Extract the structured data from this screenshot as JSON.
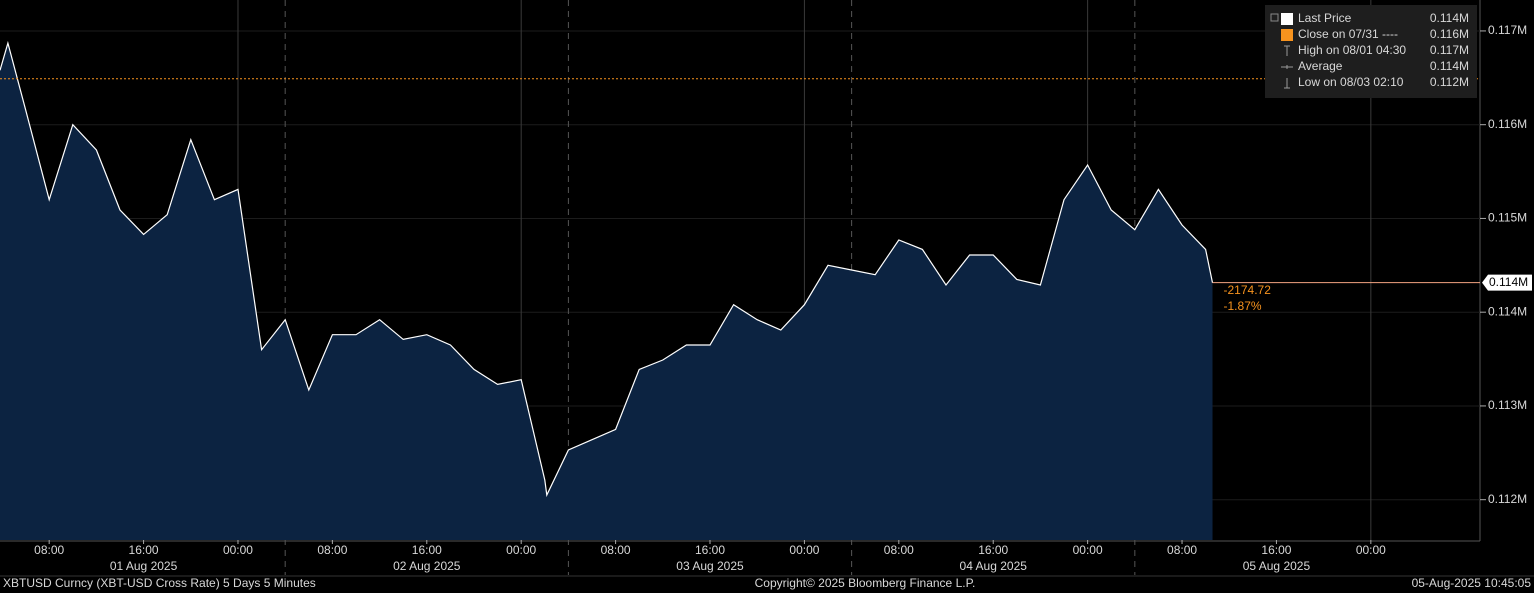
{
  "chart_data": {
    "type": "area",
    "series": [
      {
        "name": "Last Price",
        "color": "#ffffff",
        "fill": "#0c2341",
        "x": [
          "2025-08-01T03:50",
          "2025-08-01T04:30",
          "2025-08-01T06:00",
          "2025-08-01T08:00",
          "2025-08-01T10:00",
          "2025-08-01T12:00",
          "2025-08-01T14:00",
          "2025-08-01T16:00",
          "2025-08-01T18:00",
          "2025-08-01T20:00",
          "2025-08-01T22:00",
          "2025-08-02T00:00",
          "2025-08-02T02:00",
          "2025-08-02T04:00",
          "2025-08-02T06:00",
          "2025-08-02T08:00",
          "2025-08-02T10:00",
          "2025-08-02T12:00",
          "2025-08-02T14:00",
          "2025-08-02T16:00",
          "2025-08-02T18:00",
          "2025-08-02T20:00",
          "2025-08-02T22:00",
          "2025-08-03T00:00",
          "2025-08-03T02:00",
          "2025-08-03T02:10",
          "2025-08-03T04:00",
          "2025-08-03T06:00",
          "2025-08-03T08:00",
          "2025-08-03T10:00",
          "2025-08-03T12:00",
          "2025-08-03T14:00",
          "2025-08-03T16:00",
          "2025-08-03T18:00",
          "2025-08-03T20:00",
          "2025-08-03T22:00",
          "2025-08-04T00:00",
          "2025-08-04T02:00",
          "2025-08-04T04:00",
          "2025-08-04T06:00",
          "2025-08-04T08:00",
          "2025-08-04T10:00",
          "2025-08-04T12:00",
          "2025-08-04T14:00",
          "2025-08-04T16:00",
          "2025-08-04T18:00",
          "2025-08-04T20:00",
          "2025-08-04T22:00",
          "2025-08-05T00:00",
          "2025-08-05T02:00",
          "2025-08-05T04:00",
          "2025-08-05T06:00",
          "2025-08-05T08:00",
          "2025-08-05T10:00",
          "2025-08-05T10:35"
        ],
        "values": [
          116580,
          116870,
          116160,
          115200,
          116000,
          115730,
          115090,
          114830,
          115040,
          115840,
          115200,
          115310,
          113600,
          113920,
          113170,
          113760,
          113760,
          113920,
          113710,
          113760,
          113650,
          113390,
          113230,
          113280,
          112210,
          112050,
          112530,
          112640,
          112750,
          113390,
          113490,
          113650,
          113650,
          114080,
          113920,
          113810,
          114080,
          114500,
          114450,
          114400,
          114770,
          114670,
          114290,
          114610,
          114610,
          114350,
          114290,
          115200,
          115570,
          115090,
          114880,
          115310,
          114930,
          114670,
          114315
        ]
      }
    ],
    "xlim": [
      "2025-08-01T03:50",
      "2025-08-06T09:15"
    ],
    "xticks": [
      {
        "value": "2025-08-01T08:00",
        "label": "08:00"
      },
      {
        "value": "2025-08-01T16:00",
        "label": "16:00"
      },
      {
        "value": "2025-08-02T00:00",
        "label": "00:00"
      },
      {
        "value": "2025-08-02T08:00",
        "label": "08:00"
      },
      {
        "value": "2025-08-02T16:00",
        "label": "16:00"
      },
      {
        "value": "2025-08-03T00:00",
        "label": "00:00"
      },
      {
        "value": "2025-08-03T08:00",
        "label": "08:00"
      },
      {
        "value": "2025-08-03T16:00",
        "label": "16:00"
      },
      {
        "value": "2025-08-04T00:00",
        "label": "00:00"
      },
      {
        "value": "2025-08-04T08:00",
        "label": "08:00"
      },
      {
        "value": "2025-08-04T16:00",
        "label": "16:00"
      },
      {
        "value": "2025-08-05T00:00",
        "label": "00:00"
      },
      {
        "value": "2025-08-05T08:00",
        "label": "08:00"
      },
      {
        "value": "2025-08-05T16:00",
        "label": "16:00"
      },
      {
        "value": "2025-08-06T00:00",
        "label": "00:00"
      }
    ],
    "date_labels": [
      {
        "value": "2025-08-01T16:00",
        "label": "01 Aug 2025"
      },
      {
        "value": "2025-08-02T16:00",
        "label": "02 Aug 2025"
      },
      {
        "value": "2025-08-03T16:00",
        "label": "03 Aug 2025"
      },
      {
        "value": "2025-08-04T16:00",
        "label": "04 Aug 2025"
      },
      {
        "value": "2025-08-05T16:00",
        "label": "05 Aug 2025"
      }
    ],
    "day_separators": [
      "2025-08-02T04:00",
      "2025-08-03T04:00",
      "2025-08-04T04:00",
      "2025-08-05T04:00"
    ],
    "ylim": [
      111570,
      117330
    ],
    "yticks": [
      {
        "value": 112000,
        "label": "0.112M"
      },
      {
        "value": 113000,
        "label": "0.113M"
      },
      {
        "value": 114000,
        "label": "0.114M"
      },
      {
        "value": 115000,
        "label": "0.115M"
      },
      {
        "value": 116000,
        "label": "0.116M"
      },
      {
        "value": 117000,
        "label": "0.117M"
      }
    ],
    "grid": true,
    "legend": [
      {
        "name": "Last Price",
        "value": 114315,
        "value_label": "0.114M",
        "marker": "square",
        "color": "#ffffff"
      },
      {
        "name": "Close on 07/31 ----",
        "value": 116490,
        "value_label": "0.116M",
        "marker": "square",
        "color": "#f7931e"
      },
      {
        "name": "High on 08/01 04:30",
        "value": 116870,
        "value_label": "0.117M",
        "marker": "high",
        "color": "#9a9a9a"
      },
      {
        "name": "Average",
        "value": 114200,
        "value_label": "0.114M",
        "marker": "line",
        "color": "#9a9a9a"
      },
      {
        "name": "Low on 08/03 02:10",
        "value": 112050,
        "value_label": "0.112M",
        "marker": "low",
        "color": "#9a9a9a"
      }
    ],
    "annotations": [
      {
        "value": -2174.72,
        "color": "#f7931e"
      },
      {
        "value": -1.87,
        "label": "-1.87%",
        "color": "#f7931e"
      }
    ],
    "footer": {
      "left": "XBTUSD Curncy (XBT-USD Cross Rate) 5 Days 5 Minutes",
      "center": "Copyright© 2025 Bloomberg Finance L.P.",
      "right": "05-Aug-2025 10:45:05"
    }
  }
}
